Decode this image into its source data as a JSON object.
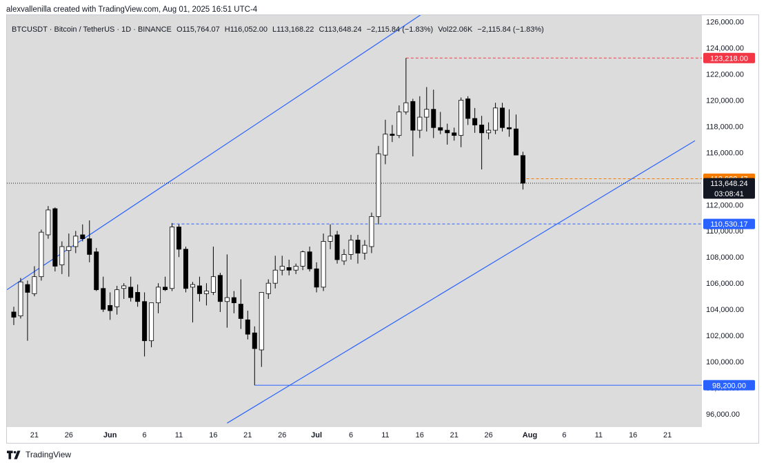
{
  "header": {
    "attribution": "alexvallenilla created with TradingView.com, Aug 01, 2025 16:51 UTC-4"
  },
  "legend": {
    "symbol": "BTCUSDT · Bitcoin / TetherUS · 1D · BINANCE",
    "open": "O115,764.07",
    "high": "H116,052.00",
    "low": "L113,168.22",
    "close": "C113,648.24",
    "change": "−2,115.84 (−1.83%)",
    "volume": "Vol22.06K",
    "volume_change": "−2,115.84 (−1.83%)"
  },
  "footer": {
    "brand": "TradingView"
  },
  "colors": {
    "plot_bg": "#dcdcdc",
    "candle_up": "#ffffff",
    "candle_down": "#000000",
    "trendline": "#2962ff",
    "resistance": "#f23645",
    "current_price": "#f57c00",
    "level_label": "#2962ff"
  },
  "chart_data": {
    "type": "candlestick",
    "symbol": "BTCUSDT",
    "interval": "1D",
    "ylim": [
      95000,
      126500
    ],
    "y_ticks": [
      96000,
      98000,
      100000,
      102000,
      104000,
      106000,
      108000,
      110000,
      112000,
      114000,
      116000,
      118000,
      120000,
      122000,
      124000,
      126000
    ],
    "y_tick_labels": [
      "96,000.00",
      "98,000.00",
      "100,000.00",
      "102,000.00",
      "104,000.00",
      "106,000.00",
      "108,000.00",
      "110,000.00",
      "112,000.00",
      "114,000.00",
      "116,000.00",
      "118,000.00",
      "120,000.00",
      "122,000.00",
      "124,000.00",
      "126,000.00"
    ],
    "x_ticks": [
      {
        "label": "21",
        "day": 0,
        "bold": false
      },
      {
        "label": "26",
        "day": 5,
        "bold": false
      },
      {
        "label": "Jun",
        "day": 11,
        "bold": true
      },
      {
        "label": "6",
        "day": 16,
        "bold": false
      },
      {
        "label": "11",
        "day": 21,
        "bold": false
      },
      {
        "label": "16",
        "day": 26,
        "bold": false
      },
      {
        "label": "21",
        "day": 31,
        "bold": false
      },
      {
        "label": "26",
        "day": 36,
        "bold": false
      },
      {
        "label": "Jul",
        "day": 41,
        "bold": true
      },
      {
        "label": "6",
        "day": 46,
        "bold": false
      },
      {
        "label": "11",
        "day": 51,
        "bold": false
      },
      {
        "label": "16",
        "day": 56,
        "bold": false
      },
      {
        "label": "21",
        "day": 61,
        "bold": false
      },
      {
        "label": "26",
        "day": 66,
        "bold": false
      },
      {
        "label": "Aug",
        "day": 72,
        "bold": true
      },
      {
        "label": "6",
        "day": 77,
        "bold": false
      },
      {
        "label": "11",
        "day": 82,
        "bold": false
      },
      {
        "label": "16",
        "day": 87,
        "bold": false
      },
      {
        "label": "21",
        "day": 92,
        "bold": false
      }
    ],
    "x_range_days": [
      -4,
      97
    ],
    "candles": [
      {
        "day": -3,
        "o": 103800,
        "h": 104200,
        "l": 102800,
        "c": 103400
      },
      {
        "day": -2,
        "o": 103500,
        "h": 106400,
        "l": 103300,
        "c": 106100
      },
      {
        "day": -1,
        "o": 105900,
        "h": 106200,
        "l": 101600,
        "c": 105300
      },
      {
        "day": 0,
        "o": 105200,
        "h": 107300,
        "l": 105000,
        "c": 106500
      },
      {
        "day": 1,
        "o": 106500,
        "h": 110100,
        "l": 106200,
        "c": 109900
      },
      {
        "day": 2,
        "o": 109700,
        "h": 111900,
        "l": 109400,
        "c": 111600
      },
      {
        "day": 3,
        "o": 111700,
        "h": 111800,
        "l": 106900,
        "c": 107300
      },
      {
        "day": 4,
        "o": 107400,
        "h": 109200,
        "l": 106700,
        "c": 108800
      },
      {
        "day": 5,
        "o": 108500,
        "h": 109800,
        "l": 106500,
        "c": 108800
      },
      {
        "day": 6,
        "o": 108800,
        "h": 110000,
        "l": 108300,
        "c": 109600
      },
      {
        "day": 7,
        "o": 109700,
        "h": 110500,
        "l": 109200,
        "c": 109400
      },
      {
        "day": 8,
        "o": 109400,
        "h": 110800,
        "l": 107600,
        "c": 108200
      },
      {
        "day": 9,
        "o": 108400,
        "h": 108700,
        "l": 105400,
        "c": 105500
      },
      {
        "day": 10,
        "o": 105600,
        "h": 106500,
        "l": 103800,
        "c": 104000
      },
      {
        "day": 11,
        "o": 104300,
        "h": 105300,
        "l": 103200,
        "c": 103900
      },
      {
        "day": 12,
        "o": 104200,
        "h": 105800,
        "l": 103600,
        "c": 105500
      },
      {
        "day": 13,
        "o": 105600,
        "h": 106000,
        "l": 104800,
        "c": 105800
      },
      {
        "day": 14,
        "o": 105700,
        "h": 106500,
        "l": 104600,
        "c": 104900
      },
      {
        "day": 15,
        "o": 105300,
        "h": 105900,
        "l": 104200,
        "c": 104600
      },
      {
        "day": 16,
        "o": 104600,
        "h": 105300,
        "l": 100400,
        "c": 101600
      },
      {
        "day": 17,
        "o": 101600,
        "h": 104500,
        "l": 101100,
        "c": 104500
      },
      {
        "day": 18,
        "o": 104500,
        "h": 106000,
        "l": 103700,
        "c": 105700
      },
      {
        "day": 19,
        "o": 105700,
        "h": 106500,
        "l": 105400,
        "c": 105500
      },
      {
        "day": 20,
        "o": 105600,
        "h": 110600,
        "l": 105400,
        "c": 110300
      },
      {
        "day": 21,
        "o": 110300,
        "h": 110500,
        "l": 108000,
        "c": 108600
      },
      {
        "day": 22,
        "o": 108600,
        "h": 108800,
        "l": 105300,
        "c": 105600
      },
      {
        "day": 23,
        "o": 105700,
        "h": 106100,
        "l": 103000,
        "c": 105900
      },
      {
        "day": 24,
        "o": 105800,
        "h": 106500,
        "l": 104600,
        "c": 105200
      },
      {
        "day": 25,
        "o": 105200,
        "h": 106000,
        "l": 104300,
        "c": 105400
      },
      {
        "day": 26,
        "o": 105300,
        "h": 108800,
        "l": 105100,
        "c": 106500
      },
      {
        "day": 27,
        "o": 106600,
        "h": 106800,
        "l": 103800,
        "c": 104600
      },
      {
        "day": 28,
        "o": 104600,
        "h": 108200,
        "l": 102600,
        "c": 104900
      },
      {
        "day": 29,
        "o": 104900,
        "h": 105400,
        "l": 103700,
        "c": 104500
      },
      {
        "day": 30,
        "o": 104400,
        "h": 106300,
        "l": 102500,
        "c": 103300
      },
      {
        "day": 31,
        "o": 103200,
        "h": 103900,
        "l": 101700,
        "c": 102100
      },
      {
        "day": 32,
        "o": 102200,
        "h": 102700,
        "l": 98200,
        "c": 101000
      },
      {
        "day": 33,
        "o": 100900,
        "h": 105200,
        "l": 99600,
        "c": 105300
      },
      {
        "day": 34,
        "o": 105200,
        "h": 106300,
        "l": 104800,
        "c": 106000
      },
      {
        "day": 35,
        "o": 106000,
        "h": 108100,
        "l": 105600,
        "c": 107000
      },
      {
        "day": 36,
        "o": 107000,
        "h": 108100,
        "l": 106600,
        "c": 107300
      },
      {
        "day": 37,
        "o": 107200,
        "h": 107800,
        "l": 106600,
        "c": 107000
      },
      {
        "day": 38,
        "o": 107000,
        "h": 107500,
        "l": 106700,
        "c": 107300
      },
      {
        "day": 39,
        "o": 107300,
        "h": 108500,
        "l": 107000,
        "c": 108400
      },
      {
        "day": 40,
        "o": 108400,
        "h": 108800,
        "l": 106900,
        "c": 107100
      },
      {
        "day": 41,
        "o": 107100,
        "h": 107600,
        "l": 105300,
        "c": 105700
      },
      {
        "day": 42,
        "o": 105700,
        "h": 109800,
        "l": 105400,
        "c": 109200
      },
      {
        "day": 43,
        "o": 109200,
        "h": 110500,
        "l": 108600,
        "c": 109600
      },
      {
        "day": 44,
        "o": 109700,
        "h": 110000,
        "l": 107500,
        "c": 107800
      },
      {
        "day": 45,
        "o": 107700,
        "h": 108600,
        "l": 107400,
        "c": 108200
      },
      {
        "day": 46,
        "o": 108200,
        "h": 109700,
        "l": 107800,
        "c": 109300
      },
      {
        "day": 47,
        "o": 109300,
        "h": 109700,
        "l": 107500,
        "c": 108300
      },
      {
        "day": 48,
        "o": 108300,
        "h": 109300,
        "l": 107800,
        "c": 108900
      },
      {
        "day": 49,
        "o": 108800,
        "h": 111400,
        "l": 108300,
        "c": 111100
      },
      {
        "day": 50,
        "o": 111100,
        "h": 116500,
        "l": 110500,
        "c": 115900
      },
      {
        "day": 51,
        "o": 115800,
        "h": 118500,
        "l": 115100,
        "c": 117400
      },
      {
        "day": 52,
        "o": 117400,
        "h": 118100,
        "l": 116800,
        "c": 117300
      },
      {
        "day": 53,
        "o": 117300,
        "h": 119600,
        "l": 117100,
        "c": 119100
      },
      {
        "day": 54,
        "o": 119100,
        "h": 123218,
        "l": 118900,
        "c": 119800
      },
      {
        "day": 55,
        "o": 119900,
        "h": 120100,
        "l": 115700,
        "c": 117700
      },
      {
        "day": 56,
        "o": 117700,
        "h": 120300,
        "l": 117100,
        "c": 118700
      },
      {
        "day": 57,
        "o": 118700,
        "h": 121000,
        "l": 117600,
        "c": 119300
      },
      {
        "day": 58,
        "o": 119300,
        "h": 120800,
        "l": 117100,
        "c": 117900
      },
      {
        "day": 59,
        "o": 117900,
        "h": 119100,
        "l": 117400,
        "c": 117700
      },
      {
        "day": 60,
        "o": 117700,
        "h": 118200,
        "l": 116600,
        "c": 117500
      },
      {
        "day": 61,
        "o": 117500,
        "h": 117900,
        "l": 116900,
        "c": 117300
      },
      {
        "day": 62,
        "o": 117300,
        "h": 120200,
        "l": 116400,
        "c": 120000
      },
      {
        "day": 63,
        "o": 120100,
        "h": 120300,
        "l": 118100,
        "c": 118600
      },
      {
        "day": 64,
        "o": 118600,
        "h": 119400,
        "l": 117500,
        "c": 118100
      },
      {
        "day": 65,
        "o": 118100,
        "h": 118800,
        "l": 114700,
        "c": 117500
      },
      {
        "day": 66,
        "o": 117500,
        "h": 118300,
        "l": 117000,
        "c": 117700
      },
      {
        "day": 67,
        "o": 117700,
        "h": 119800,
        "l": 117400,
        "c": 119400
      },
      {
        "day": 68,
        "o": 119400,
        "h": 119800,
        "l": 117600,
        "c": 117900
      },
      {
        "day": 69,
        "o": 117900,
        "h": 119300,
        "l": 117200,
        "c": 117800
      },
      {
        "day": 70,
        "o": 117800,
        "h": 118900,
        "l": 115800,
        "c": 115800
      },
      {
        "day": 71,
        "o": 115764.07,
        "h": 116052,
        "l": 113168.22,
        "c": 113648.24
      }
    ],
    "trendlines": [
      {
        "name": "upper channel",
        "p1": {
          "day": -4,
          "price": 105500
        },
        "p2": {
          "day": 57.5,
          "price": 127000
        }
      },
      {
        "name": "lower channel",
        "p1": {
          "day": 28,
          "price": 95300
        },
        "p2": {
          "day": 96,
          "price": 116900
        }
      }
    ],
    "levels": [
      {
        "name": "resistance",
        "price": 123218,
        "label": "123,218.00",
        "style": "dashed",
        "color": "#f23645",
        "from_day": 54
      },
      {
        "name": "breakout",
        "price": 110530.17,
        "label": "110,530.17",
        "style": "dashed",
        "color": "#2962ff",
        "from_day": 20
      },
      {
        "name": "support low",
        "price": 98200,
        "label": "98,200.00",
        "style": "solid",
        "color": "#2962ff",
        "from_day": 32
      },
      {
        "name": "orange level",
        "price": 113988.47,
        "label": "113,988.47",
        "style": "dashed",
        "color": "#f57c00",
        "from_day": 71.5
      },
      {
        "name": "current price",
        "price": 113648.24,
        "label": "113,648.24",
        "sublabel": "03:08:41",
        "style": "dotted",
        "color": "#131722",
        "from_day": -4
      }
    ]
  }
}
